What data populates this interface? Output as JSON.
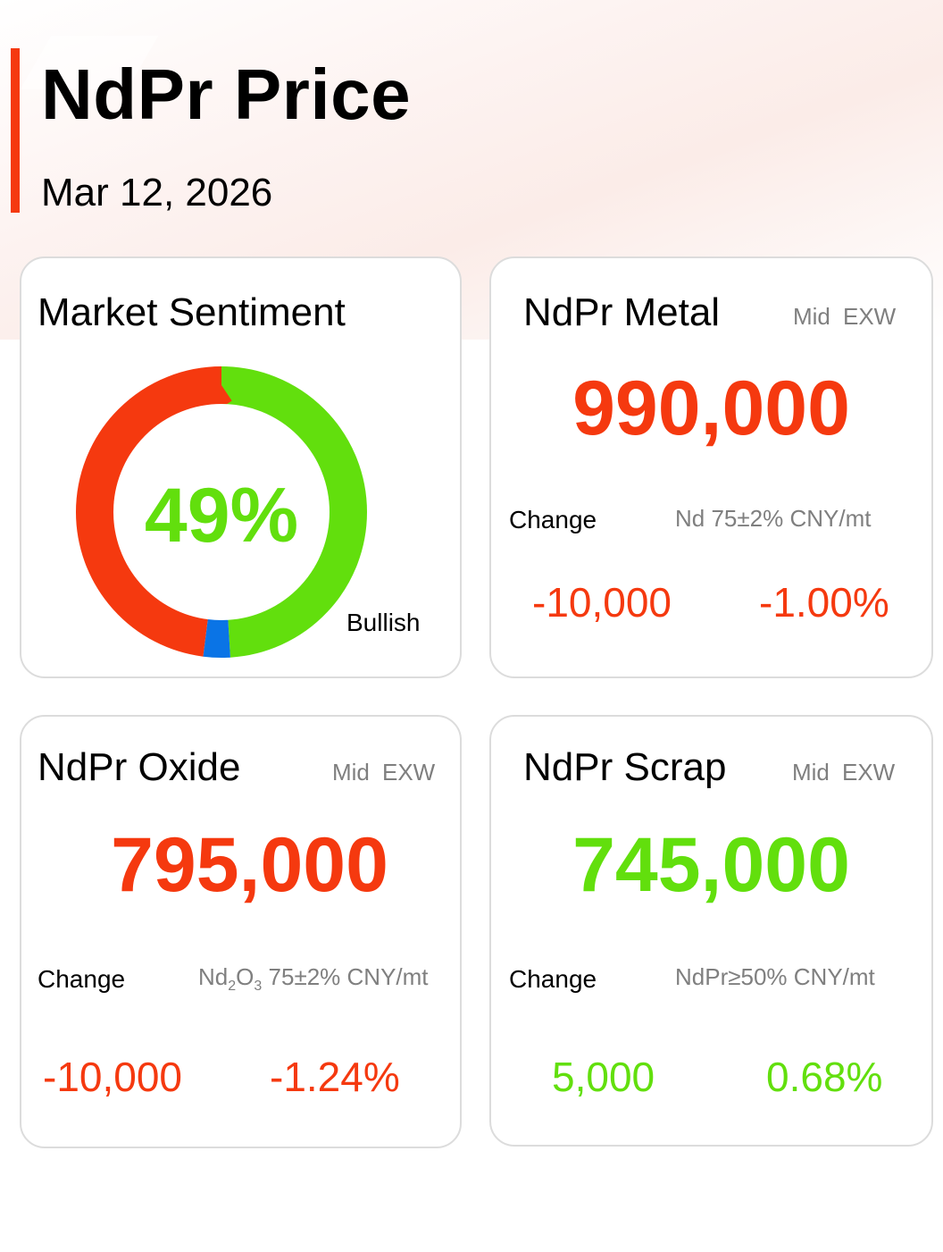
{
  "header": {
    "title": "NdPr Price",
    "date": "Mar 12, 2026",
    "accent_color": "#f5390f"
  },
  "colors": {
    "down": "#f5390f",
    "up": "#62df0d",
    "neutral": "#0a74e6"
  },
  "sentiment": {
    "title": "Market Sentiment",
    "percent_label": "49%",
    "bullish_label": "Bullish",
    "bullish_pct": 49,
    "neutral_pct": 3,
    "bearish_pct": 48
  },
  "metal": {
    "title": "NdPr Metal",
    "tag_mid": "Mid",
    "tag_exw": "EXW",
    "price": "990,000",
    "change_label": "Change",
    "spec": "Nd 75±2% CNY/mt",
    "change_abs": "-10,000",
    "change_pct": "-1.00%",
    "direction": "down"
  },
  "oxide": {
    "title": "NdPr Oxide",
    "tag_mid": "Mid",
    "tag_exw": "EXW",
    "price": "795,000",
    "change_label": "Change",
    "spec_el1": "Nd",
    "spec_sub1": "2",
    "spec_el2": "O",
    "spec_sub2": "3",
    "spec_rest": " 75±2% CNY/mt",
    "change_abs": "-10,000",
    "change_pct": "-1.24%",
    "direction": "down"
  },
  "scrap": {
    "title": "NdPr Scrap",
    "tag_mid": "Mid",
    "tag_exw": "EXW",
    "price": "745,000",
    "change_label": "Change",
    "spec": "NdPr≥50% CNY/mt",
    "change_abs": "5,000",
    "change_pct": "0.68%",
    "direction": "up"
  }
}
